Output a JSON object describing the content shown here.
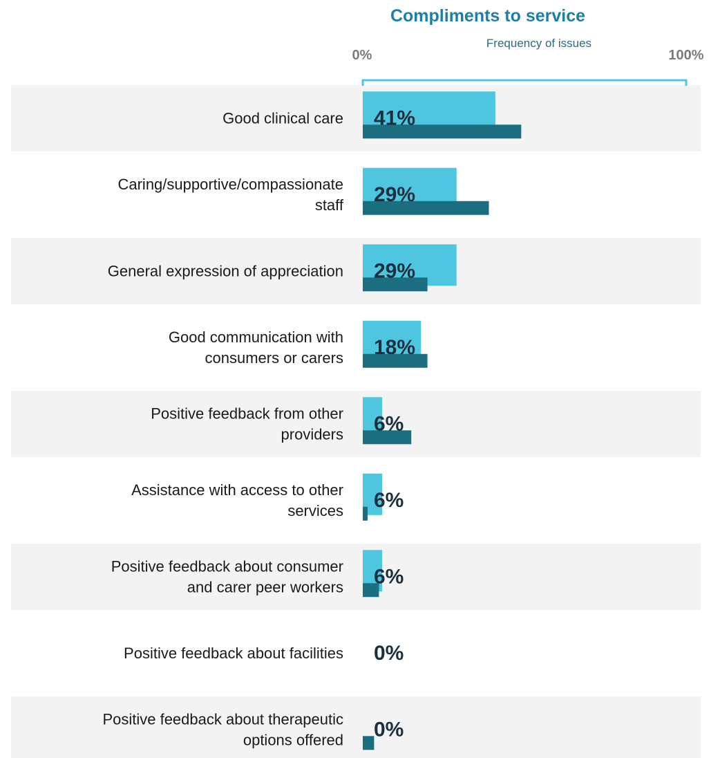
{
  "chart_data": {
    "type": "bar",
    "orientation": "horizontal",
    "title": "Compliments to service",
    "subtitle": "Frequency of issues",
    "axis_start_label": "0%",
    "axis_end_label": "100%",
    "xlim": [
      0,
      100
    ],
    "categories": [
      [
        "Good clinical care"
      ],
      [
        "Caring/supportive/compassionate",
        "staff"
      ],
      [
        "General expression of appreciation"
      ],
      [
        "Good communication with",
        "consumers or carers"
      ],
      [
        "Positive feedback from other",
        "providers"
      ],
      [
        "Assistance with access to other",
        "services"
      ],
      [
        "Positive feedback about consumer",
        "and carer peer workers"
      ],
      [
        "Positive feedback about facilities"
      ],
      [
        "Positive feedback about therapeutic",
        "options offered"
      ]
    ],
    "series": [
      {
        "values": [
          41,
          29,
          29,
          18,
          6,
          6,
          6,
          0,
          0
        ],
        "color": "#4fc6e0"
      },
      {
        "values": [
          49,
          39,
          20,
          20,
          15,
          1.5,
          5,
          0,
          3.5
        ],
        "color": "#1a6e80"
      }
    ],
    "value_labels": [
      "41%",
      "29%",
      "29%",
      "18%",
      "6%",
      "6%",
      "6%",
      "0%",
      "0%"
    ],
    "row_shading": [
      true,
      false,
      true,
      false,
      true,
      false,
      true,
      false,
      true
    ]
  },
  "colors": {
    "title": "#1b7fa8",
    "subtitle": "#2e6a85",
    "axis_end_labels": "#7a7a7a",
    "bracket": "#4fc6e0",
    "row_band": "#f3f3f3",
    "category_text": "#1a1a1a",
    "value_text": "#1b2f3f"
  }
}
